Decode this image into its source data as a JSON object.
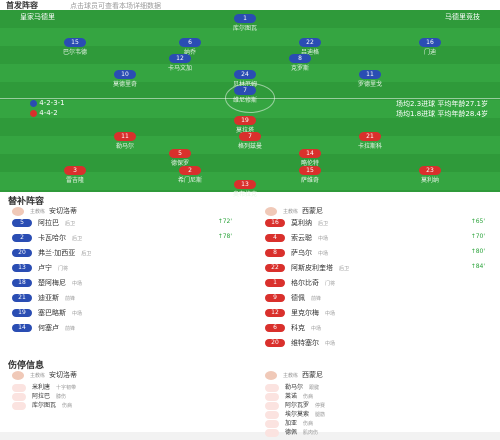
{
  "header": {
    "title": "首发阵容",
    "subtitle": "点击球员可查看本场详细数据"
  },
  "home": {
    "name": "皇家马德里",
    "formation": "4-2-3-1",
    "info": "场均2.3进球  平均年龄27.1岁"
  },
  "away": {
    "name": "马德里竞技",
    "formation": "4-4-2",
    "info": "场均1.8进球  平均年龄28.4岁"
  },
  "home_players": [
    {
      "number": "1",
      "name": "库尔图瓦"
    },
    {
      "number": "15",
      "name": "巴尔韦德"
    },
    {
      "number": "6",
      "name": "纳乔"
    },
    {
      "number": "22",
      "name": "吕迪格"
    },
    {
      "number": "16",
      "name": "门迪"
    },
    {
      "number": "12",
      "name": "卡马文加"
    },
    {
      "number": "8",
      "name": "克罗斯"
    },
    {
      "number": "10",
      "name": "莫德里奇"
    },
    {
      "number": "24",
      "name": "贝林厄姆"
    },
    {
      "number": "11",
      "name": "罗德里戈"
    },
    {
      "number": "7",
      "name": "维尼修斯"
    }
  ],
  "away_players": [
    {
      "number": "19",
      "name": "莫拉塔"
    },
    {
      "number": "11",
      "name": "勒马尔"
    },
    {
      "number": "7",
      "name": "格列兹曼"
    },
    {
      "number": "21",
      "name": "卡拉斯科"
    },
    {
      "number": "5",
      "name": "德保罗"
    },
    {
      "number": "14",
      "name": "略伦特"
    },
    {
      "number": "3",
      "name": "雷吉隆"
    },
    {
      "number": "2",
      "name": "希门尼斯"
    },
    {
      "number": "15",
      "name": "萨维奇"
    },
    {
      "number": "23",
      "name": "莫利纳"
    },
    {
      "number": "13",
      "name": "奥布拉克"
    }
  ],
  "subs": {
    "title": "替补阵容",
    "home_coach": {
      "role": "主教练",
      "name": "安切洛蒂"
    },
    "away_coach": {
      "role": "主教练",
      "name": "西蒙尼"
    },
    "home": [
      {
        "number": "5",
        "name": "阿拉巴",
        "pos": "后卫",
        "event": "↑72'"
      },
      {
        "number": "2",
        "name": "卡瓦哈尔",
        "pos": "后卫",
        "event": "↑78'"
      },
      {
        "number": "20",
        "name": "弗兰·加西亚",
        "pos": "后卫"
      },
      {
        "number": "13",
        "name": "卢宁",
        "pos": "门将"
      },
      {
        "number": "18",
        "name": "楚阿梅尼",
        "pos": "中场"
      },
      {
        "number": "21",
        "name": "迪亚斯",
        "pos": "前锋"
      },
      {
        "number": "19",
        "name": "塞巴略斯",
        "pos": "中场"
      },
      {
        "number": "14",
        "name": "何塞卢",
        "pos": "前锋"
      }
    ],
    "away": [
      {
        "number": "16",
        "name": "莫利纳",
        "pos": "后卫",
        "event": "↑65'"
      },
      {
        "number": "4",
        "name": "索云聪",
        "pos": "中场",
        "event": "↑70'"
      },
      {
        "number": "8",
        "name": "萨乌尔",
        "pos": "中场",
        "event": "↑80'"
      },
      {
        "number": "22",
        "name": "阿斯皮利奎塔",
        "pos": "后卫",
        "event": "↑84'"
      },
      {
        "number": "1",
        "name": "格尔比奇",
        "pos": "门将"
      },
      {
        "number": "9",
        "name": "德佩",
        "pos": "前锋"
      },
      {
        "number": "12",
        "name": "里克尔梅",
        "pos": "中场"
      },
      {
        "number": "6",
        "name": "科克",
        "pos": "中场"
      },
      {
        "number": "20",
        "name": "维特塞尔",
        "pos": "中场"
      }
    ]
  },
  "injuries": {
    "title": "伤停信息",
    "home_coach": {
      "role": "主教练",
      "name": "安切洛蒂"
    },
    "away_coach": {
      "role": "主教练",
      "name": "西蒙尼"
    },
    "home": [
      {
        "name": "米利唐",
        "reason": "十字韧带"
      },
      {
        "name": "阿拉巴",
        "reason": "膝伤"
      },
      {
        "name": "库尔图瓦",
        "reason": "伤病"
      }
    ],
    "away": [
      {
        "name": "勒马尔",
        "reason": "跟腱"
      },
      {
        "name": "莱诺",
        "reason": "伤病"
      },
      {
        "name": "阿尔瓦罗",
        "reason": "停赛"
      },
      {
        "name": "埃尔莫索",
        "reason": "腿筋"
      },
      {
        "name": "加亚",
        "reason": "伤病"
      },
      {
        "name": "德佩",
        "reason": "肌肉伤"
      }
    ]
  }
}
